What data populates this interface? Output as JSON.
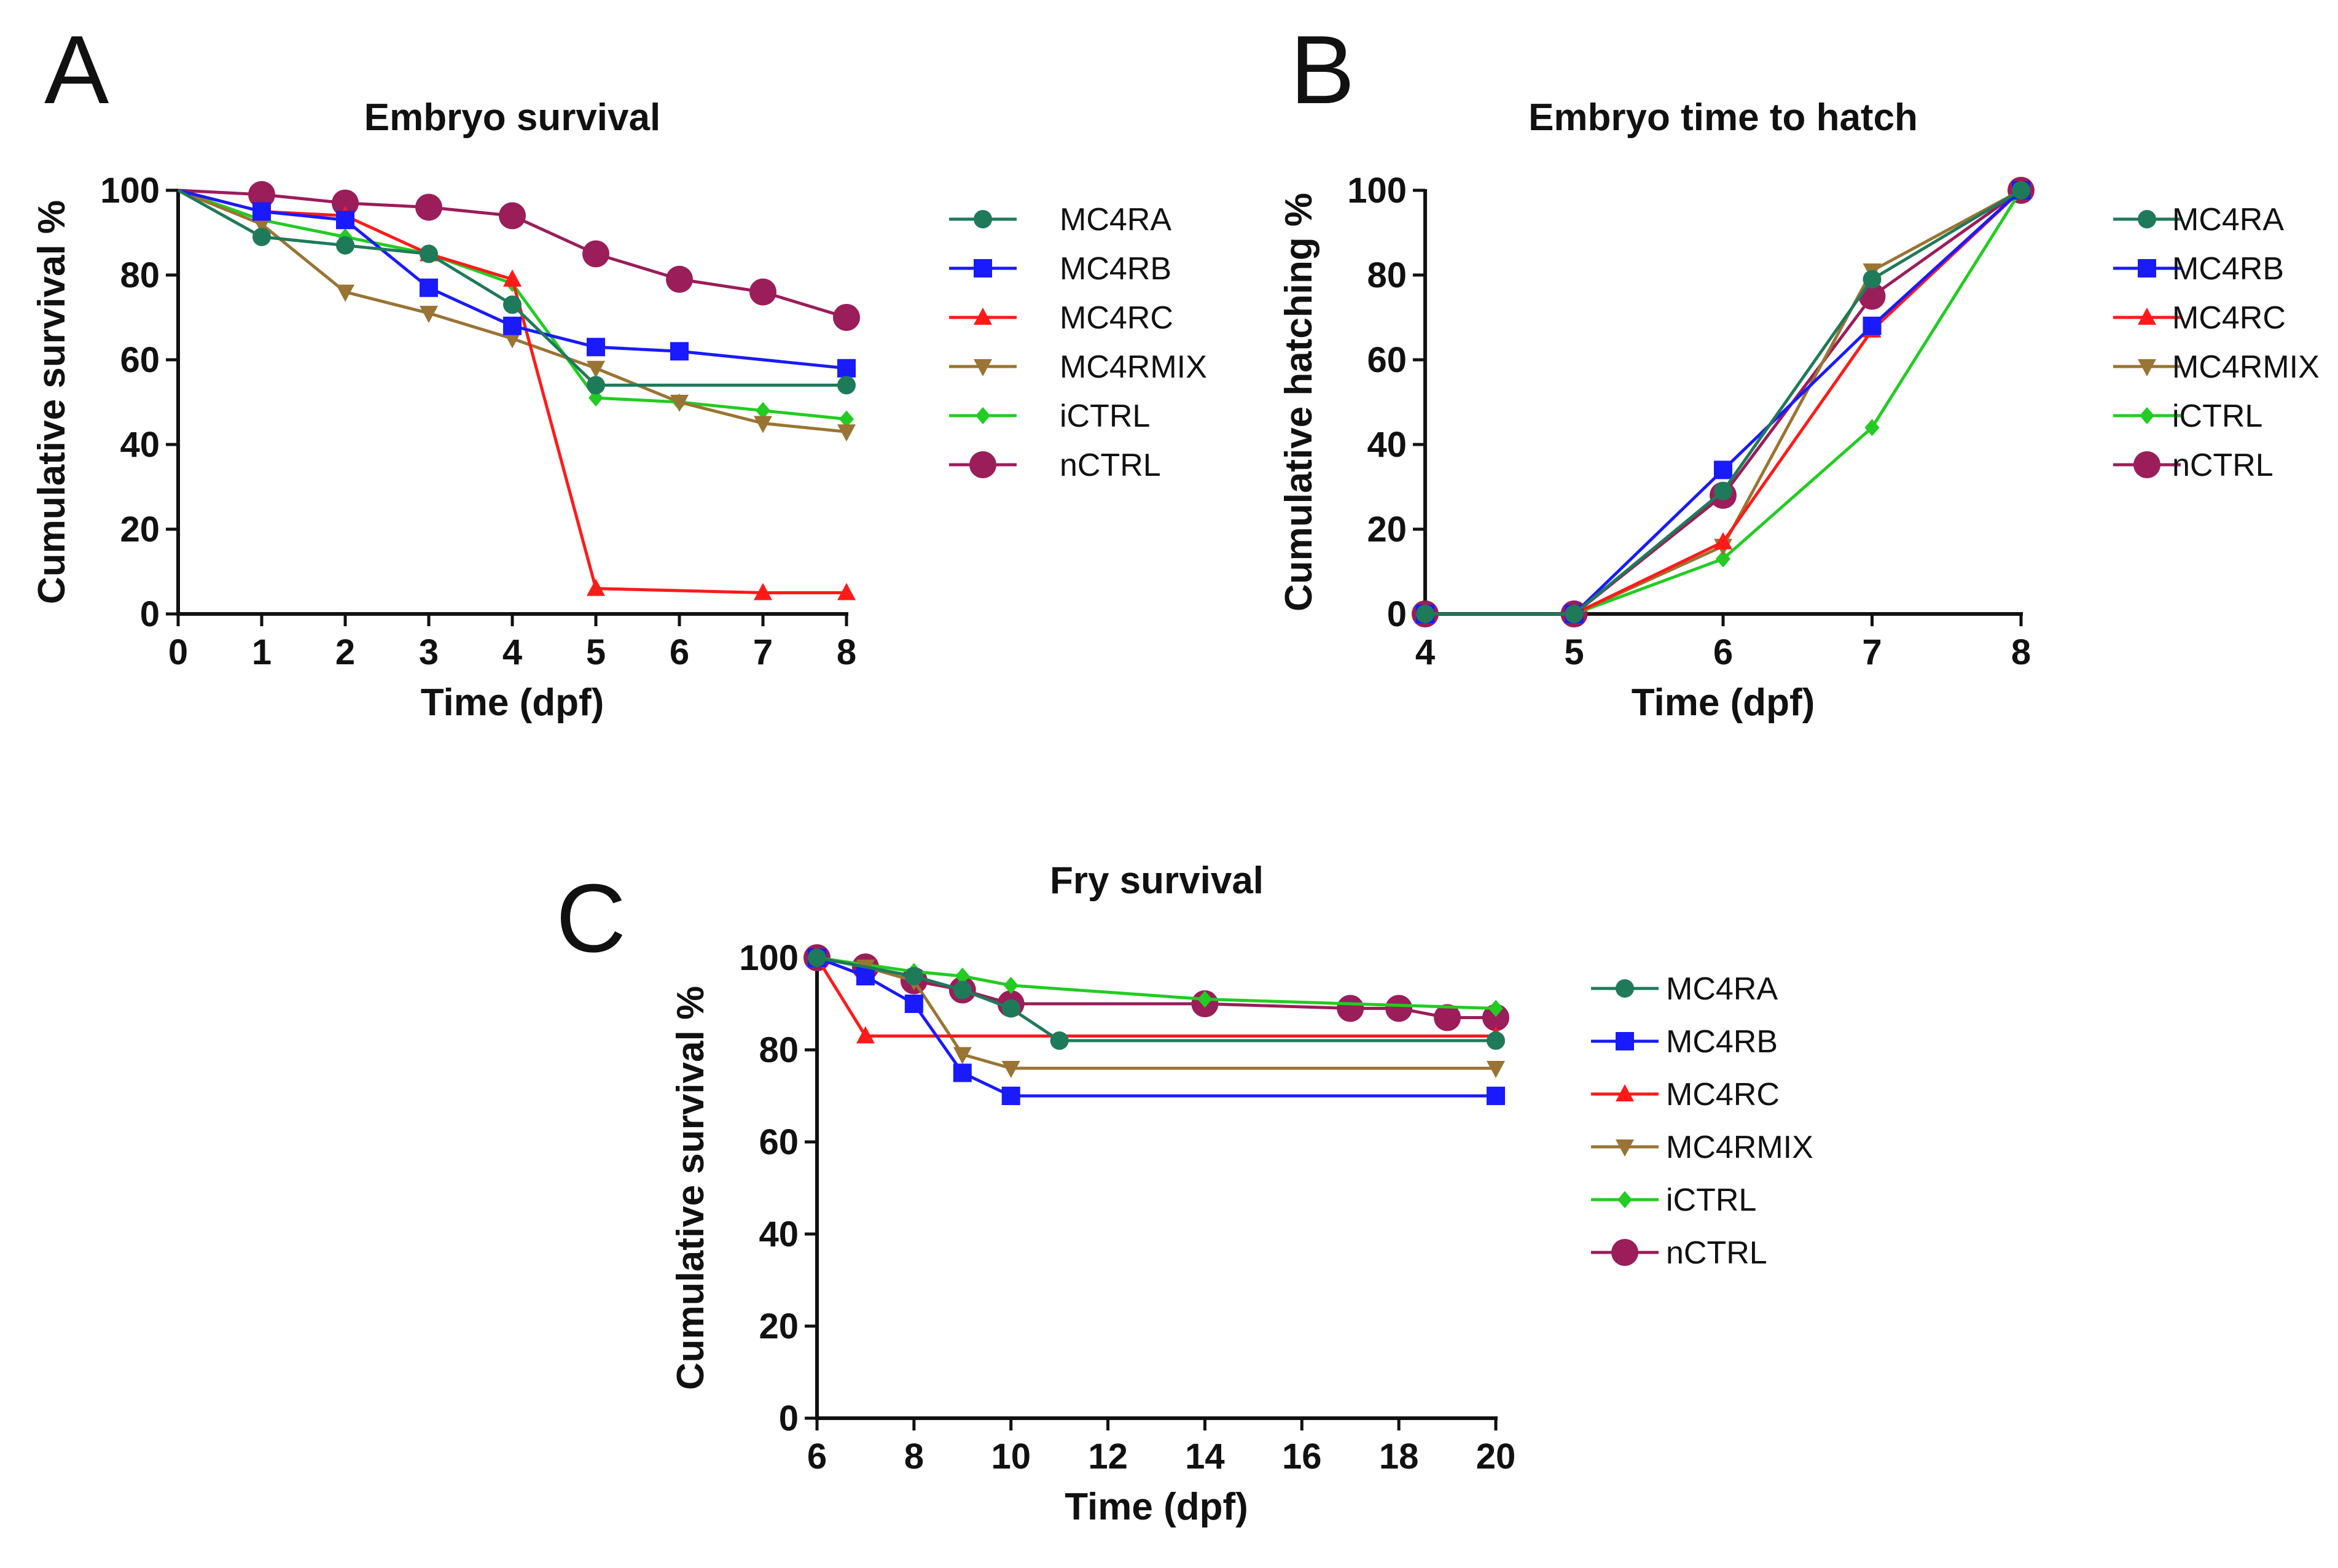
{
  "figure": {
    "description_panels": [
      "A",
      "B",
      "C"
    ]
  },
  "colors": {
    "MC4RA": "#1f7a5a",
    "MC4RB": "#1a1aff",
    "MC4RC": "#ff1a1a",
    "MC4RMIX": "#9a7434",
    "iCTRL": "#22cc22",
    "nCTRL": "#9b1d5a"
  },
  "chart_data": [
    {
      "panel": "A",
      "type": "line",
      "title": "Embryo survival",
      "xlabel": "Time (dpf)",
      "ylabel": "Cumulative survival %",
      "xlim": [
        0,
        8
      ],
      "ylim": [
        0,
        100
      ],
      "xticks": [
        0,
        1,
        2,
        3,
        4,
        5,
        6,
        7,
        8
      ],
      "yticks": [
        0,
        20,
        40,
        60,
        80,
        100
      ],
      "legend": "right",
      "series": [
        {
          "name": "MC4RA",
          "marker": "circle",
          "x": [
            0,
            1,
            2,
            3,
            4,
            5,
            8
          ],
          "y": [
            100,
            89,
            87,
            85,
            73,
            54,
            54
          ]
        },
        {
          "name": "MC4RB",
          "marker": "square",
          "x": [
            0,
            1,
            2,
            3,
            4,
            5,
            6,
            8
          ],
          "y": [
            100,
            95,
            93,
            77,
            68,
            63,
            62,
            58
          ]
        },
        {
          "name": "MC4RC",
          "marker": "triangle-up",
          "x": [
            0,
            1,
            2,
            3,
            4,
            5,
            7,
            8
          ],
          "y": [
            100,
            95,
            94,
            85,
            79,
            6,
            5,
            5
          ]
        },
        {
          "name": "MC4RMIX",
          "marker": "triangle-down",
          "x": [
            0,
            1,
            2,
            3,
            4,
            5,
            6,
            7,
            8
          ],
          "y": [
            100,
            92,
            76,
            71,
            65,
            58,
            50,
            45,
            43
          ]
        },
        {
          "name": "iCTRL",
          "marker": "diamond",
          "x": [
            0,
            1,
            2,
            3,
            4,
            5,
            6,
            7,
            8
          ],
          "y": [
            100,
            93,
            89,
            85,
            78,
            51,
            50,
            48,
            46
          ]
        },
        {
          "name": "nCTRL",
          "marker": "circle-large",
          "x": [
            0,
            1,
            2,
            3,
            4,
            5,
            6,
            7,
            8
          ],
          "y": [
            100,
            99,
            97,
            96,
            94,
            85,
            79,
            76,
            70
          ]
        }
      ]
    },
    {
      "panel": "B",
      "type": "line",
      "title": "Embryo time to hatch",
      "xlabel": "Time (dpf)",
      "ylabel": "Cumulative hatching %",
      "xlim": [
        4,
        8
      ],
      "ylim": [
        0,
        100
      ],
      "xticks": [
        4,
        5,
        6,
        7,
        8
      ],
      "yticks": [
        0,
        20,
        40,
        60,
        80,
        100
      ],
      "legend": "right",
      "series": [
        {
          "name": "MC4RA",
          "marker": "circle",
          "x": [
            4,
            5,
            6,
            7,
            8
          ],
          "y": [
            0,
            0,
            29,
            79,
            100
          ]
        },
        {
          "name": "MC4RB",
          "marker": "square",
          "x": [
            4,
            5,
            6,
            7,
            8
          ],
          "y": [
            0,
            0,
            34,
            68,
            100
          ]
        },
        {
          "name": "MC4RC",
          "marker": "triangle-up",
          "x": [
            4,
            5,
            6,
            7,
            8
          ],
          "y": [
            0,
            0,
            17,
            67,
            100
          ]
        },
        {
          "name": "MC4RMIX",
          "marker": "triangle-down",
          "x": [
            4,
            5,
            6,
            7,
            8
          ],
          "y": [
            0,
            0,
            16,
            81,
            100
          ]
        },
        {
          "name": "iCTRL",
          "marker": "diamond",
          "x": [
            4,
            5,
            6,
            7,
            8
          ],
          "y": [
            0,
            0,
            13,
            44,
            100
          ]
        },
        {
          "name": "nCTRL",
          "marker": "circle-large",
          "x": [
            4,
            5,
            6,
            7,
            8
          ],
          "y": [
            0,
            0,
            28,
            75,
            100
          ]
        }
      ]
    },
    {
      "panel": "C",
      "type": "line",
      "title": "Fry survival",
      "xlabel": "Time (dpf)",
      "ylabel": "Cumulative survival %",
      "xlim": [
        6,
        20
      ],
      "ylim": [
        0,
        100
      ],
      "xticks": [
        6,
        8,
        10,
        12,
        14,
        16,
        18,
        20
      ],
      "yticks": [
        0,
        20,
        40,
        60,
        80,
        100
      ],
      "legend": "right",
      "series": [
        {
          "name": "MC4RA",
          "marker": "circle",
          "x": [
            6,
            8,
            9,
            10,
            11,
            20
          ],
          "y": [
            100,
            96,
            93,
            89,
            82,
            82
          ]
        },
        {
          "name": "MC4RB",
          "marker": "square",
          "x": [
            6,
            7,
            8,
            9,
            10,
            20
          ],
          "y": [
            100,
            96,
            90,
            75,
            70,
            70
          ]
        },
        {
          "name": "MC4RC",
          "marker": "triangle-up",
          "x": [
            6,
            7,
            20
          ],
          "y": [
            100,
            83,
            83
          ]
        },
        {
          "name": "MC4RMIX",
          "marker": "triangle-down",
          "x": [
            6,
            7,
            8,
            9,
            10,
            20
          ],
          "y": [
            100,
            98,
            95,
            79,
            76,
            76
          ]
        },
        {
          "name": "iCTRL",
          "marker": "diamond",
          "x": [
            6,
            8,
            9,
            10,
            14,
            20
          ],
          "y": [
            100,
            97,
            96,
            94,
            91,
            89
          ]
        },
        {
          "name": "nCTRL",
          "marker": "circle-large",
          "x": [
            6,
            7,
            8,
            9,
            10,
            14,
            17,
            18,
            19,
            20
          ],
          "y": [
            100,
            98,
            95,
            93,
            90,
            90,
            89,
            89,
            87,
            87
          ]
        }
      ]
    }
  ]
}
